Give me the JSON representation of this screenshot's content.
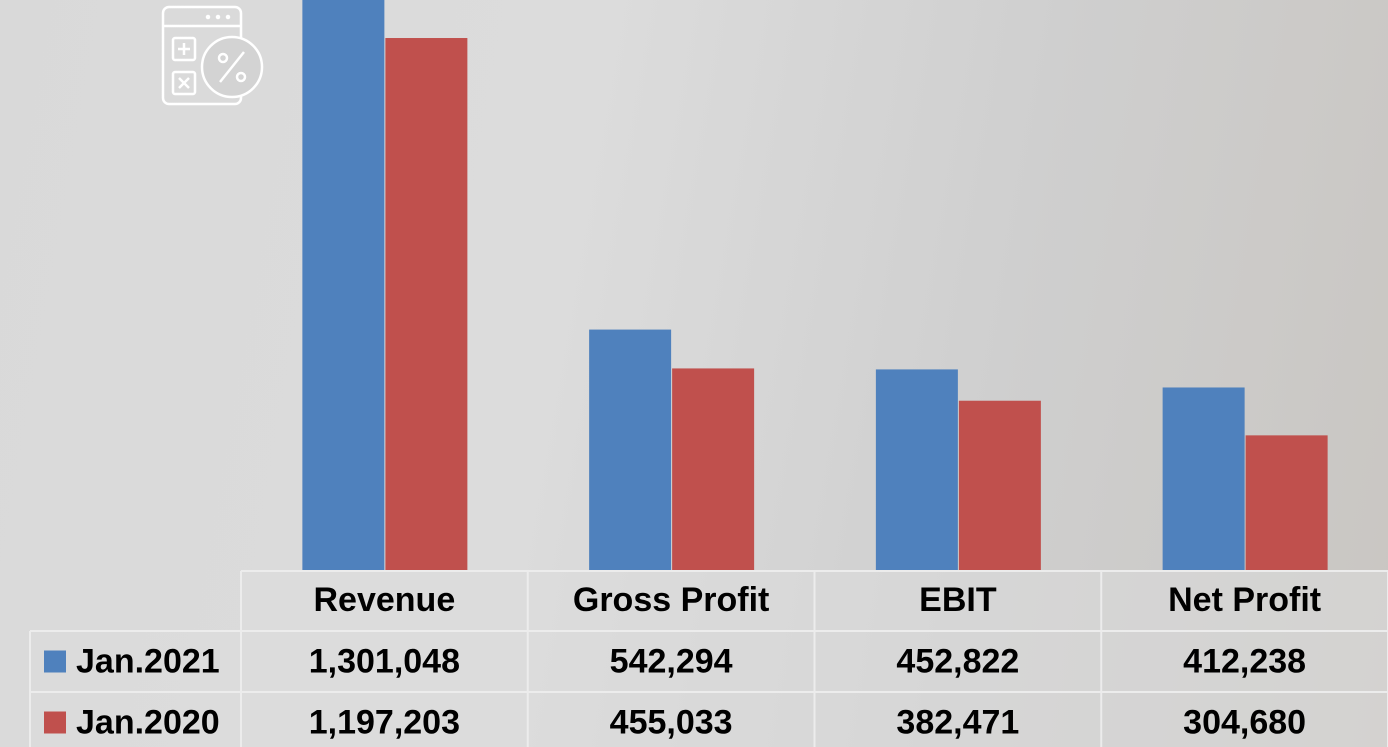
{
  "chart_data": {
    "type": "bar",
    "categories": [
      "Revenue",
      "Gross Profit",
      "EBIT",
      "Net Profit"
    ],
    "series": [
      {
        "name": "Jan.2021",
        "color": "#4f81bd",
        "values": [
          1301048,
          542294,
          452822,
          412238
        ],
        "value_labels": [
          "1,301,048",
          "542,294",
          "452,822",
          "412,238"
        ]
      },
      {
        "name": "Jan.2020",
        "color": "#c0504d",
        "values": [
          1197203,
          455033,
          382471,
          304680
        ],
        "value_labels": [
          "1,197,203",
          "455,033",
          "382,471",
          "304,680"
        ]
      }
    ],
    "ylim": [
      0,
      1282600
    ]
  }
}
